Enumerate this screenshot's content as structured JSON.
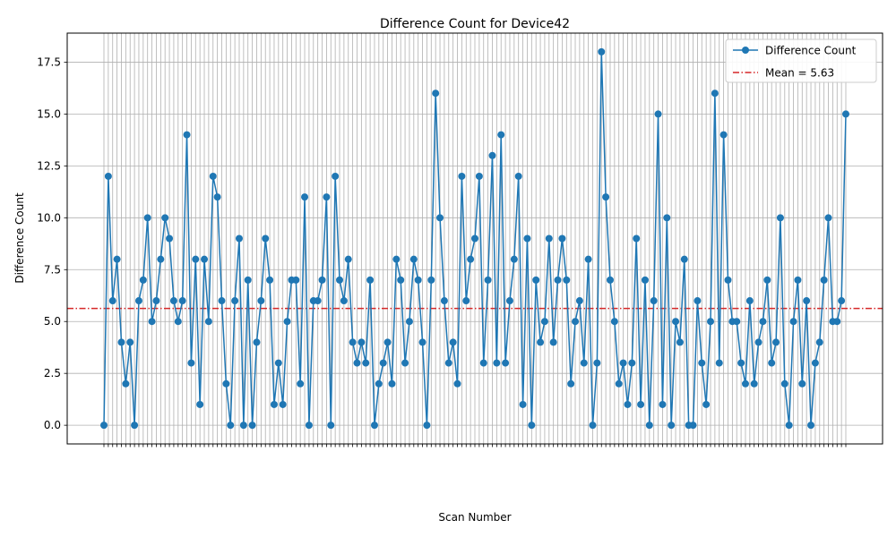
{
  "chart_data": {
    "type": "line",
    "title": "Difference Count for Device42",
    "xlabel": "Scan Number",
    "ylabel": "Difference Count",
    "ylim": [
      -0.9,
      18.9
    ],
    "yticks": [
      0.0,
      2.5,
      5.0,
      7.5,
      10.0,
      12.5,
      15.0,
      17.5
    ],
    "ytick_labels": [
      "0.0",
      "2.5",
      "5.0",
      "7.5",
      "10.0",
      "12.5",
      "15.0",
      "17.5"
    ],
    "grid": true,
    "legend_position": "top-right",
    "series": [
      {
        "name": "Difference Count",
        "color": "#1f77b4",
        "marker": "circle",
        "values": [
          0,
          12,
          6,
          8,
          4,
          2,
          4,
          0,
          6,
          7,
          10,
          5,
          6,
          8,
          10,
          9,
          6,
          5,
          6,
          14,
          3,
          8,
          1,
          8,
          5,
          12,
          11,
          6,
          2,
          0,
          6,
          9,
          0,
          7,
          0,
          4,
          6,
          9,
          7,
          1,
          3,
          1,
          5,
          7,
          7,
          2,
          11,
          0,
          6,
          6,
          7,
          11,
          0,
          12,
          7,
          6,
          8,
          4,
          3,
          4,
          3,
          7,
          0,
          2,
          3,
          4,
          2,
          8,
          7,
          3,
          5,
          8,
          7,
          4,
          0,
          7,
          16,
          10,
          6,
          3,
          4,
          2,
          12,
          6,
          8,
          9,
          12,
          3,
          7,
          13,
          3,
          14,
          3,
          6,
          8,
          12,
          1,
          9,
          0,
          7,
          4,
          5,
          9,
          4,
          7,
          9,
          7,
          2,
          5,
          6,
          3,
          8,
          0,
          3,
          18,
          11,
          7,
          5,
          2,
          3,
          1,
          3,
          9,
          1,
          7,
          0,
          6,
          15,
          1,
          10,
          0,
          5,
          4,
          8,
          0,
          0,
          6,
          3,
          1,
          5,
          16,
          3,
          14,
          7,
          5,
          5,
          3,
          2,
          6,
          2,
          4,
          5,
          7,
          3,
          4,
          10,
          2,
          0,
          5,
          7,
          2,
          6,
          0,
          3,
          4,
          7,
          10,
          5,
          5,
          6,
          15
        ]
      }
    ],
    "mean_line": {
      "label": "Mean = 5.63",
      "value": 5.63,
      "color": "#d62728",
      "style": "dashdot"
    }
  }
}
